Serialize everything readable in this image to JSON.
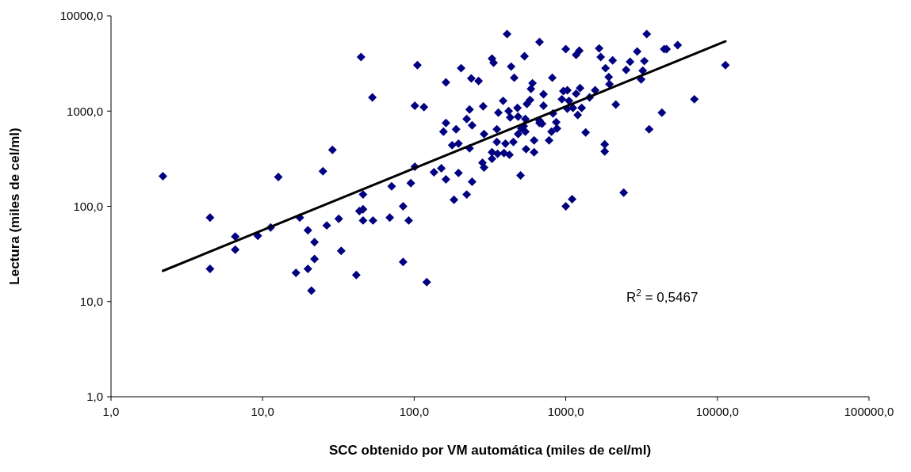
{
  "chart_data": {
    "type": "scatter",
    "xlabel": "SCC obtenido por VM automática (miles de cel/ml)",
    "ylabel": "Lectura (miles de cel/ml)",
    "log": "xy",
    "xlim": [
      1,
      100000
    ],
    "ylim": [
      1,
      10000
    ],
    "xticks": [
      {
        "value": 1,
        "label": "1,0"
      },
      {
        "value": 10,
        "label": "10,0"
      },
      {
        "value": 100,
        "label": "100,0"
      },
      {
        "value": 1000,
        "label": "1000,0"
      },
      {
        "value": 10000,
        "label": "10000,0"
      },
      {
        "value": 100000,
        "label": "100000,0"
      }
    ],
    "yticks": [
      {
        "value": 1,
        "label": "1,0"
      },
      {
        "value": 10,
        "label": "10,0"
      },
      {
        "value": 100,
        "label": "100,0"
      },
      {
        "value": 1000,
        "label": "1000,0"
      },
      {
        "value": 10000,
        "label": "10000,0"
      }
    ],
    "grid": false,
    "annotations": [
      "R$^{2}$ = 0,5467"
    ],
    "series": [
      {
        "marker": "diamond",
        "color": "#000080",
        "x": [
          2.2,
          4.5,
          4.5,
          6.6,
          6.6,
          9.3,
          11.3,
          12.7,
          17.6,
          19.9,
          22,
          22,
          16.6,
          19.9,
          21,
          25,
          28.9,
          26.5,
          31.8,
          33,
          41.5,
          43.5,
          46,
          46,
          46,
          53.5,
          69,
          71,
          84.5,
          92,
          84.5,
          95,
          101,
          121,
          135,
          44.6,
          53,
          105,
          101,
          116,
          162,
          204,
          238,
          266,
          326,
          334,
          410,
          436,
          457,
          534,
          671,
          603,
          589,
          713,
          581,
          554,
          713,
          386,
          285,
          232,
          359,
          420,
          430,
          480,
          485,
          541,
          671,
          222,
          241,
          162,
          156,
          189,
          289,
          351,
          232,
          178,
          196,
          351,
          400,
          451,
          509,
          541,
          485,
          618,
          547,
          618,
          326,
          355,
          391,
          425,
          326,
          282,
          289,
          503,
          151,
          162,
          196,
          241,
          222,
          183,
          1000,
          1170,
          1228,
          1660,
          1700,
          2037,
          1828,
          1919,
          1941,
          3420,
          2958,
          2655,
          2500,
          3297,
          3220,
          3141,
          4460,
          4620,
          5470,
          11300,
          7050,
          4305,
          3548,
          2138,
          1806,
          1806,
          2410,
          1352,
          1101,
          1000,
          815,
          964,
          1024,
          1242,
          1170,
          942,
          1050,
          1562,
          1436,
          1273,
          1199,
          1114,
          1024,
          824,
          697,
          671,
          865,
          805,
          875,
          776,
          528
        ],
        "values": [
          207,
          76,
          22,
          48,
          35,
          49,
          60,
          203,
          76,
          56,
          42,
          28,
          20,
          22,
          13,
          233,
          391,
          63,
          74,
          34,
          19,
          89,
          93,
          133,
          71,
          71,
          76,
          162,
          100,
          71,
          26,
          175,
          261,
          16,
          228,
          3690,
          1390,
          3040,
          1140,
          1100,
          2000,
          2820,
          2200,
          2070,
          3550,
          3220,
          6430,
          2930,
          2240,
          3760,
          5310,
          1960,
          1710,
          1500,
          1310,
          1190,
          1140,
          1280,
          1120,
          1040,
          962,
          1000,
          858,
          1080,
          875,
          826,
          750,
          826,
          708,
          750,
          607,
          643,
          573,
          643,
          406,
          438,
          455,
          473,
          455,
          473,
          656,
          607,
          573,
          492,
          398,
          369,
          369,
          355,
          362,
          348,
          316,
          287,
          256,
          211,
          251,
          192,
          224,
          181,
          133,
          117,
          4470,
          3900,
          4300,
          4550,
          3690,
          3410,
          2820,
          2280,
          1920,
          6430,
          4220,
          3290,
          2710,
          3350,
          2660,
          2150,
          4470,
          4470,
          4920,
          3040,
          1330,
          962,
          643,
          1170,
          447,
          376,
          139,
          596,
          119,
          100,
          2240,
          1620,
          1650,
          1740,
          1520,
          1330,
          1280,
          1650,
          1390,
          1080,
          908,
          1080,
          1060,
          944,
          736,
          794,
          764,
          607,
          656,
          492,
          695
        ]
      },
      {
        "type": "line",
        "color": "#000000",
        "x": [
          2.2,
          11300
        ],
        "values": [
          21,
          5400
        ]
      }
    ]
  }
}
